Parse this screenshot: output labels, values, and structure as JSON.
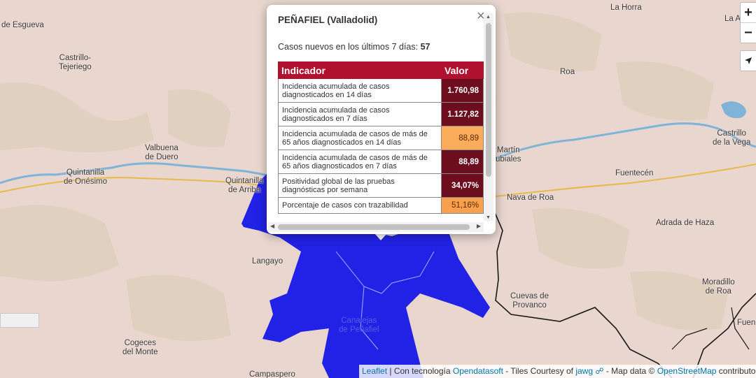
{
  "map": {
    "places": [
      {
        "name": "de Esgueva",
        "key": "esgueva"
      },
      {
        "name": "Castrillo-\nTejeriego",
        "key": "castrillo_tej"
      },
      {
        "name": "Valbuena\nde Duero",
        "key": "valbuena"
      },
      {
        "name": "Quintanilla\nde Onésimo",
        "key": "onesimo"
      },
      {
        "name": "Quintanilla\nde Arriba",
        "key": "arriba"
      },
      {
        "name": "Langayo",
        "key": "langayo"
      },
      {
        "name": "Cogeces\ndel Monte",
        "key": "cogeces"
      },
      {
        "name": "Campaspero",
        "key": "campaspero"
      },
      {
        "name": "Canalejas\nde Peñafiel",
        "key": "canalejas"
      },
      {
        "name": "La Horra",
        "key": "lahorra"
      },
      {
        "name": "La Ag",
        "key": "laag"
      },
      {
        "name": "Roa",
        "key": "roa"
      },
      {
        "name": "Martín\nubiales",
        "key": "martin"
      },
      {
        "name": "Castrillo\nde la Vega",
        "key": "castrillo_vega"
      },
      {
        "name": "Fuentecén",
        "key": "fuentecen"
      },
      {
        "name": "Nava de Roa",
        "key": "navaderoa"
      },
      {
        "name": "Adrada de Haza",
        "key": "adrada"
      },
      {
        "name": "Cuevas de\nProvanco",
        "key": "cuevas"
      },
      {
        "name": "Moradillo\nde Roa",
        "key": "moradillo"
      },
      {
        "name": "Fuen",
        "key": "fuen"
      }
    ],
    "colors": {
      "background": "#e8d6cf",
      "highlight_area": "#2222e6",
      "water": "#7fb3d8",
      "road": "#e8b84a",
      "border": "#1a1a1a"
    }
  },
  "controls": {
    "zoom_in": "+",
    "zoom_out": "−",
    "locate_icon": "locate-arrow-icon"
  },
  "popup": {
    "title": "PEÑAFIEL (Valladolid)",
    "cases_label": "Casos nuevos en los últimos 7 días:",
    "cases_value": "57",
    "close": "×",
    "table": {
      "header_indicator": "Indicador",
      "header_value": "Valor",
      "rows": [
        {
          "label": "Incidencia acumulada de casos diagnosticados en 14 días",
          "value": "1.760,98",
          "level": "dark"
        },
        {
          "label": "Incidencia acumulada de casos diagnosticados en 7 días",
          "value": "1.127,82",
          "level": "dark"
        },
        {
          "label": "Incidencia acumulada de casos de más de 65 años diagnosticados en 14 días",
          "value": "88,89",
          "level": "light"
        },
        {
          "label": "Incidencia acumulada de casos de más de 65 años diagnosticados en 7 días",
          "value": "88,89",
          "level": "dark"
        },
        {
          "label": "Positividad global de las pruebas diagnósticas por semana",
          "value": "34,07%",
          "level": "dark"
        },
        {
          "label": "Porcentaje de casos con trazabilidad",
          "value": "51,16%",
          "level": "orange"
        }
      ]
    }
  },
  "attribution": {
    "leaflet": "Leaflet",
    "sep1": " | Con tecnología ",
    "opendatasoft": "Opendatasoft",
    "sep2": " - Tiles Courtesy of ",
    "jawg": "jawg",
    "sep3": " - Map data © ",
    "osm": "OpenStreetMap",
    "contrib": " contributo"
  }
}
